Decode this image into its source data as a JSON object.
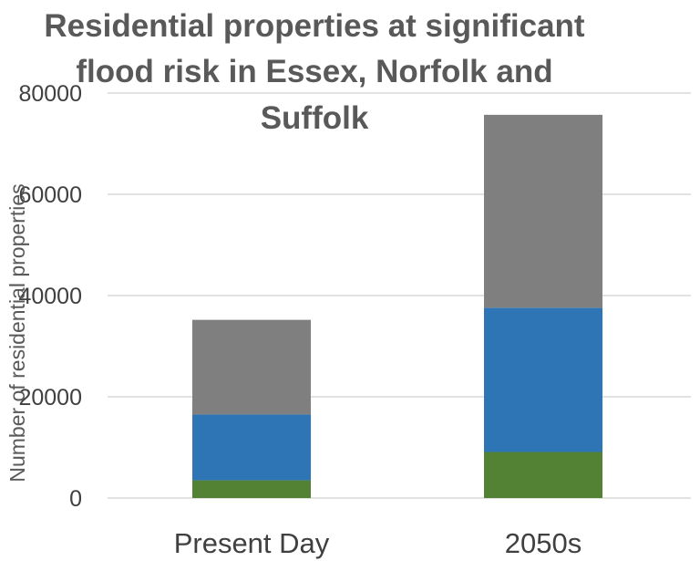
{
  "chart_data": {
    "type": "bar",
    "stacked": true,
    "title_lines": [
      "Residential properties at significant",
      "flood risk in Essex, Norfolk and",
      "Suffolk"
    ],
    "xlabel": "",
    "ylabel": "Number of residential properties",
    "categories": [
      "Present Day",
      "2050s"
    ],
    "ylim": [
      0,
      80000
    ],
    "yticks": [
      "0",
      "20000",
      "40000",
      "60000",
      "80000"
    ],
    "ytick_values": [
      0,
      20000,
      40000,
      60000,
      80000
    ],
    "grid": true,
    "legend": "none",
    "series": [
      {
        "color": "#548235",
        "values": [
          3500,
          9100
        ]
      },
      {
        "color": "#2e75b6",
        "values": [
          13000,
          28500
        ]
      },
      {
        "color": "#7f7f7f",
        "values": [
          18700,
          38100
        ]
      }
    ]
  }
}
